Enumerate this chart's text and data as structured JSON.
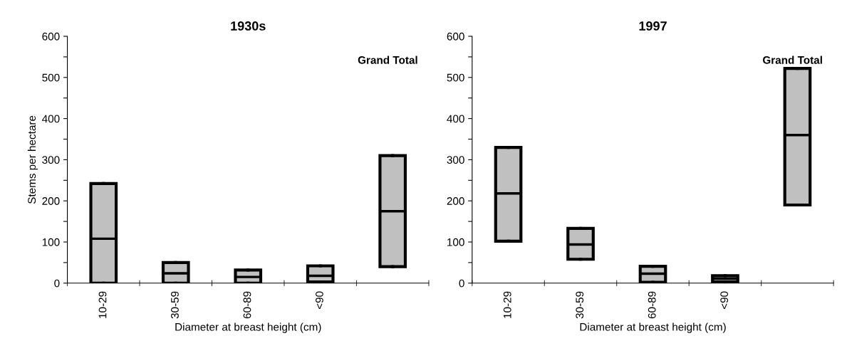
{
  "chart_data": [
    {
      "type": "box",
      "title": "1930s",
      "xlabel": "Diameter at breast height (cm)",
      "ylabel": "Stems per hectare",
      "categories": [
        "10-29",
        "30-59",
        "60-89",
        "<90",
        null
      ],
      "color": "#c0c0c0",
      "boxes": [
        {
          "low": 0,
          "q1": 0,
          "median": 108,
          "q3": 242,
          "high": 242
        },
        {
          "low": 0,
          "q1": 0,
          "median": 24,
          "q3": 50,
          "high": 50
        },
        {
          "low": 0,
          "q1": 0,
          "median": 15,
          "q3": 32,
          "high": 32
        },
        {
          "low": 3,
          "q1": 3,
          "median": 18,
          "q3": 42,
          "high": 42
        },
        {
          "low": 40,
          "q1": 40,
          "median": 175,
          "q3": 310,
          "high": 310
        }
      ],
      "ylim": [
        0,
        600
      ],
      "yticks": [
        0,
        {
          "value": 50,
          "label": null
        },
        100,
        {
          "value": 150,
          "label": null
        },
        200,
        {
          "value": 250,
          "label": null
        },
        300,
        {
          "value": 350,
          "label": null
        },
        400,
        {
          "value": 450,
          "label": null
        },
        500,
        {
          "value": 550,
          "label": null
        },
        600
      ],
      "annotations": [
        "Grand Total"
      ],
      "grid": false,
      "legend": false
    },
    {
      "type": "box",
      "title": "1997",
      "xlabel": "Diameter at breast height (cm)",
      "categories": [
        "10-29",
        "30-59",
        "60-89",
        "<90",
        null
      ],
      "color": "#c0c0c0",
      "boxes": [
        {
          "low": 102,
          "q1": 102,
          "median": 218,
          "q3": 330,
          "high": 330
        },
        {
          "low": 58,
          "q1": 58,
          "median": 94,
          "q3": 133,
          "high": 133
        },
        {
          "low": 2,
          "q1": 2,
          "median": 23,
          "q3": 41,
          "high": 41
        },
        {
          "low": 3,
          "q1": 3,
          "median": 11,
          "q3": 18,
          "high": 18
        },
        {
          "low": 190,
          "q1": 190,
          "median": 360,
          "q3": 522,
          "high": 522
        }
      ],
      "ylim": [
        0,
        600
      ],
      "yticks": [
        0,
        {
          "value": 50,
          "label": null
        },
        100,
        {
          "value": 150,
          "label": null
        },
        200,
        {
          "value": 250,
          "label": null
        },
        300,
        {
          "value": 350,
          "label": null
        },
        400,
        {
          "value": 450,
          "label": null
        },
        500,
        {
          "value": 550,
          "label": null
        },
        600
      ],
      "annotations": [
        "Grand Total"
      ],
      "grid": false,
      "legend": false
    }
  ]
}
